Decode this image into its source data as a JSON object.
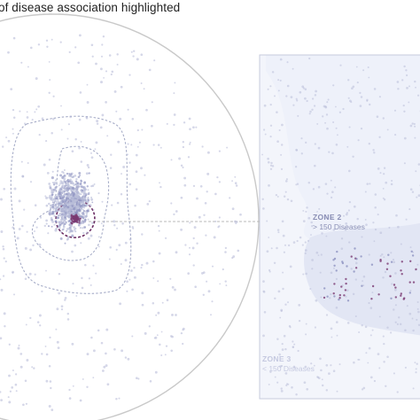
{
  "title": "of disease association highlighted",
  "zones": [
    {
      "label": "ZONE 2",
      "sub": "> 150 Diseases"
    },
    {
      "label": "ZONE 3",
      "sub": "< 150 Diseases"
    }
  ],
  "colors": {
    "node": "#b9bdd8",
    "node_dark": "#8d92c0",
    "highlight": "#7a3a72",
    "zone_fill": "#eef1fa",
    "zone_fill_dark": "#dfe3f3",
    "circle_stroke": "#c9c9c9",
    "contour": "#a7adc8"
  }
}
